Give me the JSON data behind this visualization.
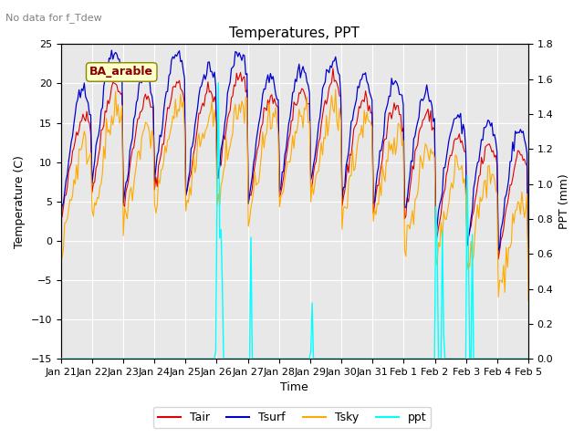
{
  "title": "Temperatures, PPT",
  "subtitle": "No data for f_Tdew",
  "station_label": "BA_arable",
  "xlabel": "Time",
  "ylabel_left": "Temperature (C)",
  "ylabel_right": "PPT (mm)",
  "ylim_left": [
    -15,
    25
  ],
  "ylim_right": [
    0.0,
    1.8
  ],
  "yticks_left": [
    -15,
    -10,
    -5,
    0,
    5,
    10,
    15,
    20,
    25
  ],
  "yticks_right": [
    0.0,
    0.2,
    0.4,
    0.6,
    0.8,
    1.0,
    1.2,
    1.4,
    1.6,
    1.8
  ],
  "bg_color": "#e8e8e8",
  "fig_color": "#ffffff",
  "grid_color": "#ffffff",
  "tair_color": "#dd0000",
  "tsurf_color": "#0000cc",
  "tsky_color": "#ffaa00",
  "ppt_color": "#00ffff",
  "legend_labels": [
    "Tair",
    "Tsurf",
    "Tsky",
    "ppt"
  ],
  "n_points": 360,
  "x_tick_labels": [
    "Jan 21",
    "Jan 22",
    "Jan 23",
    "Jan 24",
    "Jan 25",
    "Jan 26",
    "Jan 27",
    "Jan 28",
    "Jan 29",
    "Jan 30",
    "Jan 31",
    "Feb 1",
    "Feb 2",
    "Feb 3",
    "Feb 4",
    "Feb 5"
  ]
}
